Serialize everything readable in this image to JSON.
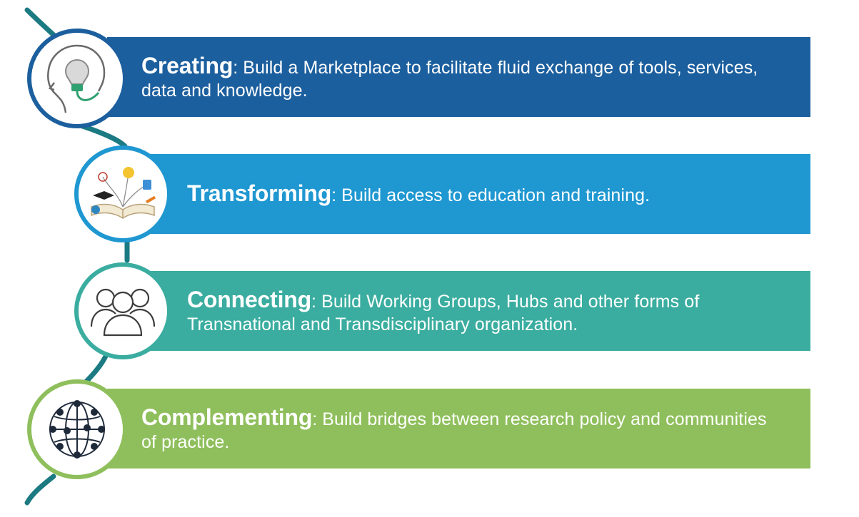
{
  "items": [
    {
      "title": "Creating",
      "rest": ": Build a Marketplace to facilitate fluid exchange of tools, services, data and knowledge.",
      "color": "#1c5f9e",
      "icon": "head-lightbulb-icon"
    },
    {
      "title": "Transforming",
      "rest": ": Build access to education and training.",
      "color": "#1f97d1",
      "icon": "open-book-education-icon"
    },
    {
      "title": "Connecting",
      "rest": ": Build Working Groups, Hubs and other forms of Transnational and Transdisciplinary organization.",
      "color": "#3aada0",
      "icon": "people-group-icon"
    },
    {
      "title": "Complementing",
      "rest": ": Build bridges between research policy and communities of practice.",
      "color": "#8fbf5c",
      "icon": "globe-network-icon"
    }
  ],
  "connector_color": "#1b7a82"
}
